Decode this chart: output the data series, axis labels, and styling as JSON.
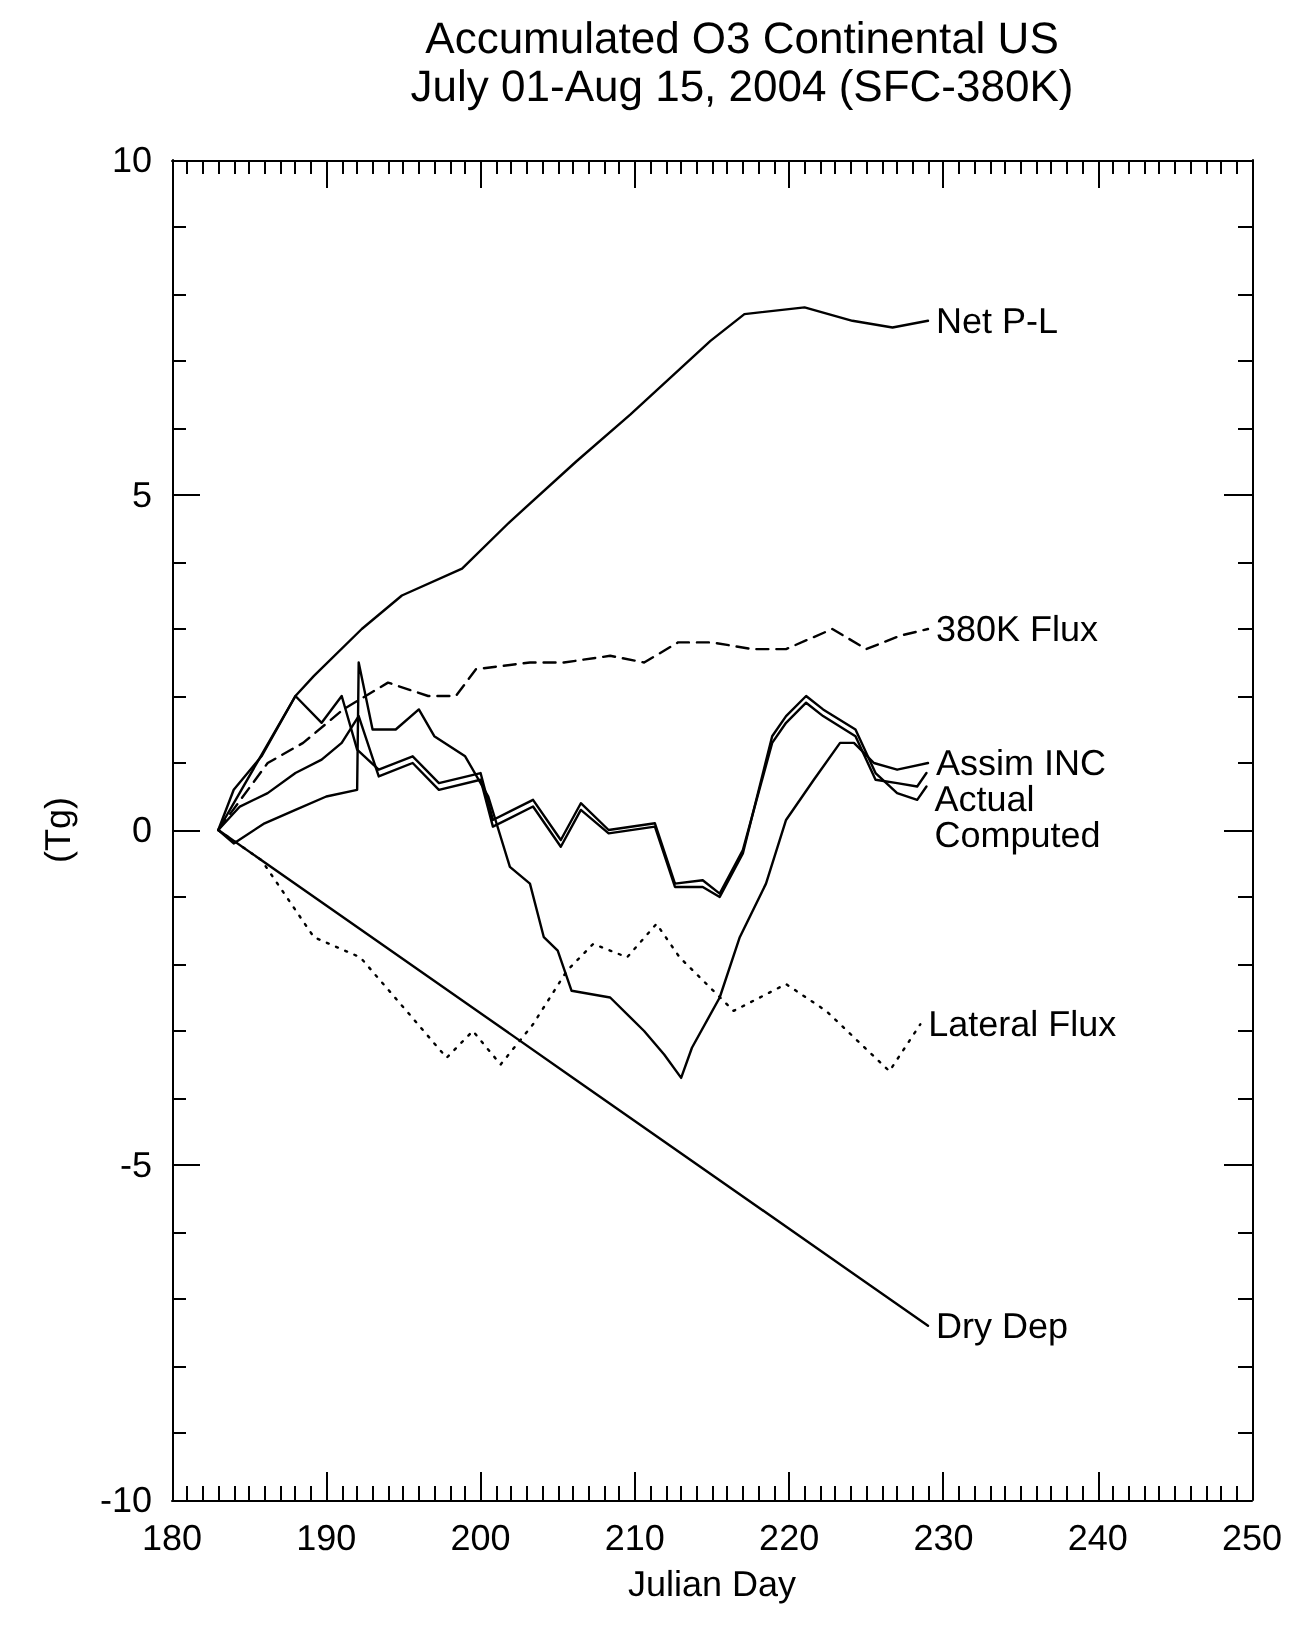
{
  "chart_data": {
    "type": "line",
    "title": "Accumulated O3 Continental US",
    "subtitle": "July 01-Aug 15, 2004 (SFC-380K)",
    "xlabel": "Julian Day",
    "ylabel": "(Tg)",
    "xlim": [
      180,
      250
    ],
    "xticks": [
      180,
      190,
      200,
      210,
      220,
      230,
      240,
      250
    ],
    "ylim": [
      -10,
      10
    ],
    "yticks": [
      -10,
      -5,
      0,
      5,
      10
    ],
    "grid": false,
    "legend": false,
    "marker": "none",
    "series": [
      {
        "name": "Net P-L",
        "color": "#000000",
        "line_style": "solid",
        "x": [
          183,
          184,
          185.8,
          188,
          189.2,
          192.3,
          194.9,
          198.8,
          201.9,
          206.2,
          209.7,
          214.9,
          217.1,
          221,
          224.1,
          226.7,
          229
        ],
        "values": [
          0,
          0.6,
          1.1,
          2.0,
          2.3,
          3.0,
          3.5,
          3.9,
          4.6,
          5.5,
          6.2,
          7.3,
          7.7,
          7.8,
          7.6,
          7.5,
          7.6
        ]
      },
      {
        "name": "380K Flux",
        "color": "#000000",
        "line_style": "dashed",
        "x": [
          183,
          186.2,
          188.5,
          191.1,
          194,
          196.6,
          198.4,
          199.7,
          203.2,
          205.4,
          208.4,
          210.6,
          212.8,
          215,
          217.6,
          219.8,
          222.8,
          225,
          227.2,
          229
        ],
        "values": [
          0,
          1.0,
          1.3,
          1.8,
          2.2,
          2.0,
          2.0,
          2.4,
          2.5,
          2.5,
          2.6,
          2.5,
          2.8,
          2.8,
          2.7,
          2.7,
          3.0,
          2.7,
          2.9,
          3.0
        ]
      },
      {
        "name": "Computed",
        "color": "#000000",
        "line_style": "solid",
        "x": [
          183,
          184.4,
          186.2,
          188,
          189.7,
          191,
          192.1,
          193.4,
          195.6,
          197.3,
          200,
          200.8,
          203.4,
          205.2,
          206.5,
          208.3,
          211.3,
          212.6,
          214.4,
          215.5,
          217,
          218.9,
          219.8,
          221.1,
          222.2,
          224.3,
          225.6,
          227,
          228.3,
          228.9
        ],
        "values": [
          0,
          0.35,
          0.55,
          0.85,
          1.05,
          1.3,
          1.7,
          0.8,
          1.0,
          0.6,
          0.75,
          0.05,
          0.35,
          -0.25,
          0.3,
          -0.05,
          0.05,
          -0.85,
          -0.85,
          -1.0,
          -0.35,
          1.4,
          1.7,
          2.0,
          1.8,
          1.5,
          0.85,
          0.55,
          0.45,
          0.65
        ]
      },
      {
        "name": "Actual",
        "color": "#000000",
        "line_style": "solid",
        "x": [
          183,
          184.5,
          186,
          188,
          189.7,
          191,
          192,
          193.4,
          195.6,
          197.3,
          200,
          200.8,
          203.4,
          205.2,
          206.5,
          208.3,
          211.3,
          212.6,
          214.4,
          215.5,
          217,
          218.9,
          219.8,
          221.1,
          222.2,
          224.3,
          225.6,
          227,
          228.3,
          228.9
        ],
        "values": [
          0,
          0.6,
          1.2,
          2.0,
          1.6,
          2.0,
          1.2,
          0.9,
          1.1,
          0.7,
          0.85,
          0.15,
          0.45,
          -0.15,
          0.4,
          0,
          0.1,
          -0.8,
          -0.75,
          -0.95,
          -0.3,
          1.3,
          1.6,
          1.9,
          1.7,
          1.4,
          0.75,
          0.7,
          0.65,
          0.85
        ]
      },
      {
        "name": "Assim INC",
        "color": "#000000",
        "line_style": "solid",
        "x": [
          183,
          184,
          186,
          188,
          190,
          192,
          192.1,
          193,
          194.5,
          196,
          197,
          199,
          200.5,
          201.9,
          203.2,
          204.1,
          205,
          205.9,
          208.4,
          210.6,
          211.9,
          213,
          213.7,
          215.5,
          216.8,
          218.5,
          219.8,
          221.6,
          223.3,
          224.2,
          225.5,
          227,
          229
        ],
        "values": [
          0,
          -0.2,
          0.1,
          0.3,
          0.5,
          0.6,
          2.5,
          1.5,
          1.5,
          1.8,
          1.4,
          1.1,
          0.5,
          -0.55,
          -0.8,
          -1.6,
          -1.8,
          -2.4,
          -2.5,
          -3.0,
          -3.35,
          -3.7,
          -3.25,
          -2.5,
          -1.6,
          -0.8,
          0.15,
          0.75,
          1.3,
          1.3,
          1.0,
          0.9,
          1.0
        ]
      },
      {
        "name": "Lateral Flux",
        "color": "#000000",
        "line_style": "dotted",
        "x": [
          183,
          185.8,
          189.2,
          192.2,
          195.2,
          197.8,
          199.5,
          201.3,
          203.4,
          205.6,
          207.3,
          209.5,
          211.4,
          212.9,
          216.4,
          219.8,
          222.4,
          226.5,
          228.5
        ],
        "values": [
          0,
          -0.45,
          -1.6,
          -1.9,
          -2.7,
          -3.4,
          -3.0,
          -3.5,
          -2.9,
          -2.1,
          -1.7,
          -1.9,
          -1.4,
          -1.9,
          -2.7,
          -2.3,
          -2.7,
          -3.6,
          -2.9
        ]
      },
      {
        "name": "Dry Dep",
        "color": "#000000",
        "line_style": "solid",
        "x": [
          183,
          206,
          229
        ],
        "values": [
          0,
          -3.7,
          -7.4
        ]
      }
    ]
  }
}
